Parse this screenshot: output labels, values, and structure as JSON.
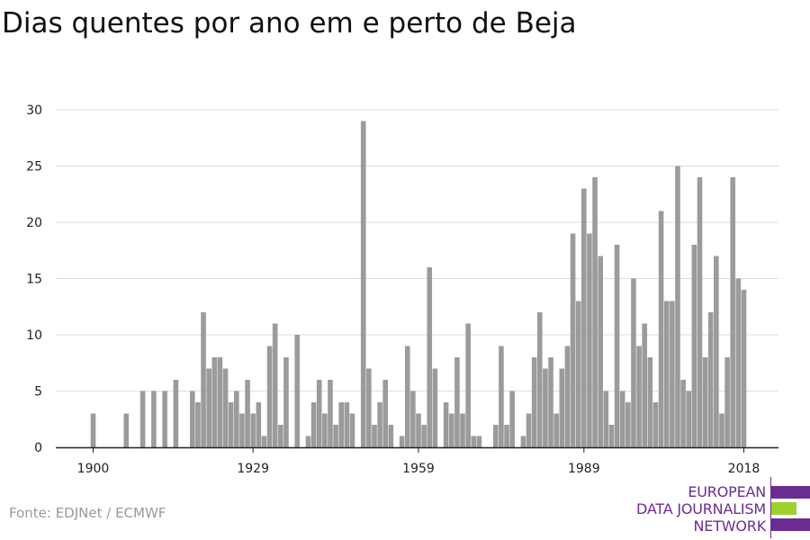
{
  "colors": {
    "bar": "#9b9b9b",
    "grid": "#dddddd",
    "axis": "#222222",
    "logo_purple": "#6b2c91",
    "logo_green": "#9dd12e"
  },
  "footer": {
    "source": "Fonte: EDJNet / ECMWF"
  },
  "logo": {
    "line1": "EUROPEAN",
    "line2": "DATA JOURNALISM",
    "line3": "NETWORK"
  },
  "chart_data": {
    "type": "bar",
    "title": "Dias quentes por ano em e perto de Beja",
    "xlabel": "",
    "ylabel": "",
    "xlim": [
      1900,
      2018
    ],
    "ylim": [
      0,
      30
    ],
    "yticks": [
      0,
      5,
      10,
      15,
      20,
      25,
      30
    ],
    "xticks": [
      1900,
      1929,
      1959,
      1989,
      2018
    ],
    "grid": true,
    "legend": "none",
    "x": [
      1900,
      1901,
      1902,
      1903,
      1904,
      1905,
      1906,
      1907,
      1908,
      1909,
      1910,
      1911,
      1912,
      1913,
      1914,
      1915,
      1916,
      1917,
      1918,
      1919,
      1920,
      1921,
      1922,
      1923,
      1924,
      1925,
      1926,
      1927,
      1928,
      1929,
      1930,
      1931,
      1932,
      1933,
      1934,
      1935,
      1936,
      1937,
      1938,
      1939,
      1940,
      1941,
      1942,
      1943,
      1944,
      1945,
      1946,
      1947,
      1948,
      1949,
      1950,
      1951,
      1952,
      1953,
      1954,
      1955,
      1956,
      1957,
      1958,
      1959,
      1960,
      1961,
      1962,
      1963,
      1964,
      1965,
      1966,
      1967,
      1968,
      1969,
      1970,
      1971,
      1972,
      1973,
      1974,
      1975,
      1976,
      1977,
      1978,
      1979,
      1980,
      1981,
      1982,
      1983,
      1984,
      1985,
      1986,
      1987,
      1988,
      1989,
      1990,
      1991,
      1992,
      1993,
      1994,
      1995,
      1996,
      1997,
      1998,
      1999,
      2000,
      2001,
      2002,
      2003,
      2004,
      2005,
      2006,
      2007,
      2008,
      2009,
      2010,
      2011,
      2012,
      2013,
      2014,
      2015,
      2016,
      2017,
      2018
    ],
    "values": [
      3,
      0,
      0,
      0,
      0,
      0,
      3,
      0,
      0,
      5,
      0,
      5,
      0,
      5,
      0,
      6,
      0,
      0,
      5,
      4,
      12,
      7,
      8,
      8,
      7,
      4,
      5,
      3,
      6,
      3,
      4,
      1,
      9,
      11,
      2,
      8,
      0,
      10,
      0,
      1,
      4,
      6,
      3,
      6,
      2,
      4,
      4,
      3,
      0,
      29,
      7,
      2,
      4,
      6,
      2,
      0,
      1,
      9,
      5,
      3,
      2,
      16,
      7,
      0,
      4,
      3,
      8,
      3,
      11,
      1,
      1,
      0,
      0,
      2,
      9,
      2,
      5,
      0,
      1,
      3,
      8,
      12,
      7,
      8,
      3,
      7,
      9,
      19,
      13,
      23,
      19,
      24,
      17,
      5,
      2,
      18,
      5,
      4,
      15,
      9,
      11,
      8,
      4,
      21,
      13,
      13,
      25,
      6,
      5,
      18,
      24,
      8,
      12,
      17,
      3,
      8,
      24,
      15,
      14
    ]
  }
}
